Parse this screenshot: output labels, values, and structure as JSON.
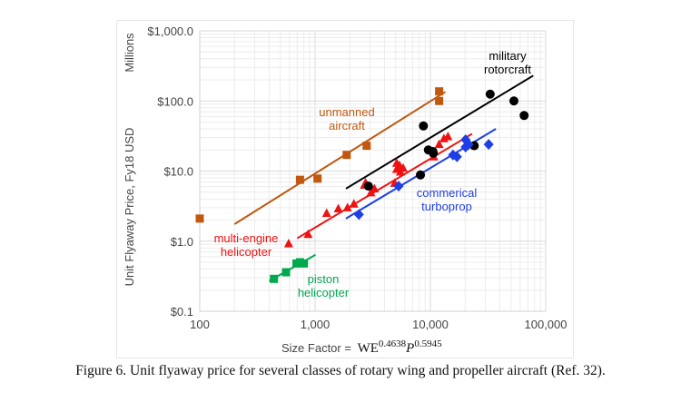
{
  "caption": "Figure 6. Unit flyaway price for several classes of rotary wing and propeller aircraft (Ref. 32).",
  "chart_data": {
    "type": "scatter",
    "title": "",
    "xlabel_prefix": "Size Factor = ",
    "xlabel_formula": {
      "base1": "WE",
      "exp1": "0.4638",
      "base2": "P",
      "exp2": "0.5945"
    },
    "ylabel": "Unit Flyaway Price, Fy18 USD",
    "yunits": "Millions",
    "xscale": "log",
    "yscale": "log",
    "xlim": [
      100,
      100000
    ],
    "ylim": [
      0.1,
      1000
    ],
    "xticks": [
      {
        "v": 100,
        "label": "100"
      },
      {
        "v": 1000,
        "label": "1,000"
      },
      {
        "v": 10000,
        "label": "10,000"
      },
      {
        "v": 100000,
        "label": "100,000"
      }
    ],
    "yticks": [
      {
        "v": 0.1,
        "label": "$0.1"
      },
      {
        "v": 1,
        "label": "$1.0"
      },
      {
        "v": 10,
        "label": "$10.0"
      },
      {
        "v": 100,
        "label": "$100.0"
      },
      {
        "v": 1000,
        "label": "$1,000.0"
      }
    ],
    "grid": true,
    "series": [
      {
        "name": "unmanned aircraft",
        "label_lines": [
          "unmanned",
          "aircraft"
        ],
        "color": "#c0580f",
        "marker": "square",
        "points": [
          [
            100,
            2.1
          ],
          [
            740,
            7.5
          ],
          [
            1050,
            7.8
          ],
          [
            1880,
            17
          ],
          [
            2800,
            23
          ],
          [
            11900,
            137
          ],
          [
            11900,
            100
          ]
        ],
        "trend": [
          [
            200,
            1.75
          ],
          [
            13500,
            135
          ]
        ]
      },
      {
        "name": "piston helicopter",
        "label_lines": [
          "piston",
          "helicopter"
        ],
        "color": "#00a84f",
        "marker": "square",
        "points": [
          [
            440,
            0.29
          ],
          [
            560,
            0.36
          ],
          [
            690,
            0.48
          ],
          [
            740,
            0.5
          ],
          [
            800,
            0.48
          ]
        ],
        "trend": [
          [
            400,
            0.27
          ],
          [
            1010,
            0.64
          ]
        ]
      },
      {
        "name": "multi-engine helicopter",
        "label_lines": [
          "multi-engine",
          "helicopter"
        ],
        "color": "#ee1111",
        "marker": "triangle",
        "points": [
          [
            590,
            0.92
          ],
          [
            870,
            1.25
          ],
          [
            1260,
            2.5
          ],
          [
            1590,
            2.9
          ],
          [
            1910,
            3.0
          ],
          [
            2170,
            3.4
          ],
          [
            2680,
            6.3
          ],
          [
            2740,
            6.8
          ],
          [
            3050,
            4.9
          ],
          [
            3270,
            5.6
          ],
          [
            5100,
            13
          ],
          [
            5400,
            12
          ],
          [
            5800,
            11
          ],
          [
            5500,
            9.7
          ],
          [
            5100,
            10.6
          ],
          [
            4900,
            6.7
          ],
          [
            10700,
            16
          ],
          [
            11900,
            24
          ],
          [
            13100,
            29
          ],
          [
            14200,
            31
          ]
        ],
        "trend": [
          [
            700,
            1.1
          ],
          [
            23000,
            34
          ]
        ]
      },
      {
        "name": "military rotorcraft",
        "label_lines": [
          "military",
          "rotorcraft"
        ],
        "color": "#000000",
        "marker": "circle",
        "points": [
          [
            2900,
            6.1
          ],
          [
            8700,
            44
          ],
          [
            8200,
            8.8
          ],
          [
            9600,
            20
          ],
          [
            10500,
            19
          ],
          [
            10600,
            18
          ],
          [
            24000,
            23
          ],
          [
            33000,
            125
          ],
          [
            53000,
            100
          ],
          [
            65000,
            62
          ]
        ],
        "trend": [
          [
            1850,
            5.6
          ],
          [
            78000,
            230
          ]
        ]
      },
      {
        "name": "commerical turboprop",
        "label_lines": [
          "commerical",
          "turboprop"
        ],
        "color": "#1f3fe6",
        "marker": "diamond",
        "points": [
          [
            2400,
            2.4
          ],
          [
            5300,
            6.1
          ],
          [
            15700,
            17
          ],
          [
            17000,
            16
          ],
          [
            20200,
            28
          ],
          [
            20200,
            22
          ],
          [
            21500,
            24
          ],
          [
            32000,
            24
          ]
        ],
        "trend": [
          [
            1850,
            2.1
          ],
          [
            37000,
            40
          ]
        ]
      }
    ]
  }
}
